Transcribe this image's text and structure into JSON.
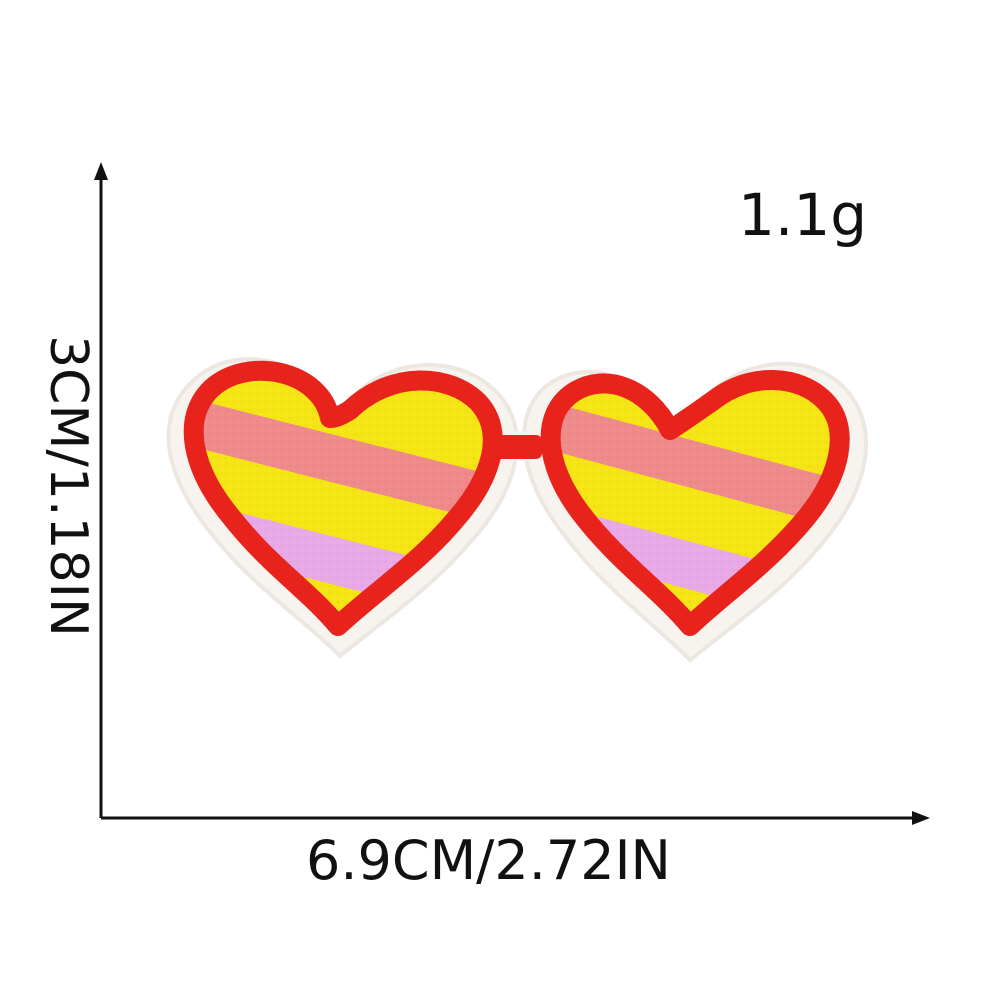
{
  "image": {
    "background_color": "#ffffff",
    "subject": "heart-sunglasses-patch",
    "colors": {
      "frame": "#e8231c",
      "lens_yellow": "#f5e514",
      "stripe_pink": "#ef8a8a",
      "stripe_lilac": "#e8a9e6",
      "backing": "#f7f3ef",
      "ink": "#111111"
    }
  },
  "labels": {
    "weight": "1.1g",
    "height": "3CM/1.18IN",
    "width": "6.9CM/2.72IN"
  }
}
